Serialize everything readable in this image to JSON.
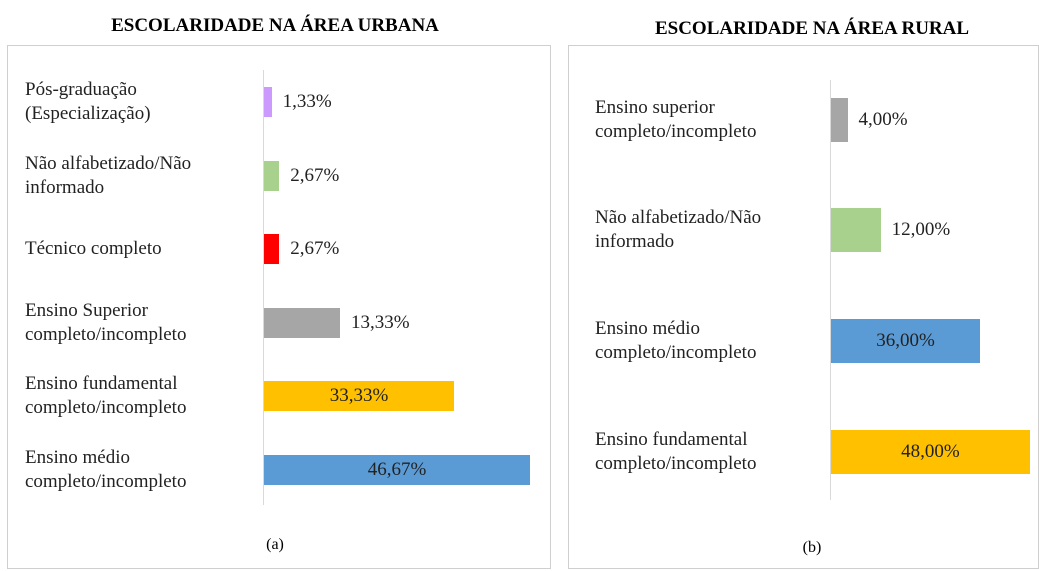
{
  "chart_data": [
    {
      "type": "bar",
      "title": "ESCOLARIDADE NA ÁREA URBANA",
      "subtitle": "(a)",
      "categories": [
        "Pós-graduação\n(Especialização)",
        "Não alfabetizado/Não\ninformado",
        "Técnico completo",
        "Ensino Superior\ncompleto/incompleto",
        "Ensino fundamental\ncompleto/incompleto",
        "Ensino médio\ncompleto/incompleto"
      ],
      "values": [
        1.33,
        2.67,
        2.67,
        13.33,
        33.33,
        46.67
      ],
      "value_labels": [
        "1,33%",
        "2,67%",
        "2,67%",
        "13,33%",
        "33,33%",
        "46,67%"
      ],
      "colors": [
        "#cc99ff",
        "#a9d18e",
        "#ff0000",
        "#a6a6a6",
        "#ffc000",
        "#5b9bd5"
      ],
      "xlim": [
        0,
        50
      ]
    },
    {
      "type": "bar",
      "title": "ESCOLARIDADE NA ÁREA RURAL",
      "subtitle": "(b)",
      "categories": [
        "Ensino superior\ncompleto/incompleto",
        "Não alfabetizado/Não\ninformado",
        "Ensino médio\ncompleto/incompleto",
        "Ensino fundamental\ncompleto/incompleto"
      ],
      "values": [
        4.0,
        12.0,
        36.0,
        48.0
      ],
      "value_labels": [
        "4,00%",
        "12,00%",
        "36,00%",
        "48,00%"
      ],
      "colors": [
        "#a6a6a6",
        "#a9d18e",
        "#5b9bd5",
        "#ffc000"
      ],
      "xlim": [
        0,
        50
      ]
    }
  ]
}
